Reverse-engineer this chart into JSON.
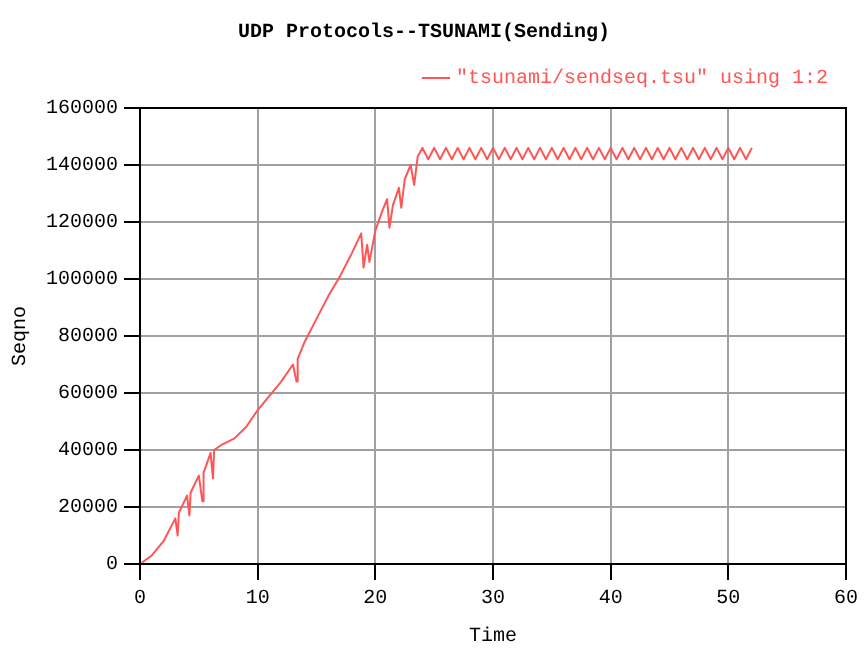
{
  "chart_data": {
    "type": "line",
    "title": "UDP Protocols--TSUNAMI(Sending)",
    "xlabel": "Time",
    "ylabel": "Seqno",
    "xlim": [
      0,
      60
    ],
    "xticks": [
      0,
      10,
      20,
      30,
      40,
      50,
      60
    ],
    "ylim": [
      0,
      160000
    ],
    "yticks": [
      0,
      20000,
      40000,
      60000,
      80000,
      100000,
      120000,
      140000,
      160000
    ],
    "grid": true,
    "legend": "top right",
    "marker": "none",
    "line_style": "solid",
    "series": [
      {
        "name": "\"tsunami/sendseq.tsu\" using 1:2",
        "color": "#ff5555",
        "x": [
          0,
          1,
          2,
          3,
          3.2,
          3.3,
          4,
          4.2,
          4.3,
          5,
          5.3,
          5.4,
          6,
          6.2,
          6.3,
          7,
          8,
          9,
          10,
          11,
          12,
          13,
          13.3,
          13.4,
          14,
          15,
          16,
          17,
          18,
          18.8,
          19,
          19.3,
          19.5,
          20,
          20.6,
          21,
          21.2,
          21.5,
          22,
          22.2,
          22.5,
          23,
          23.3,
          23.6,
          24,
          24.5,
          25,
          25.5,
          26,
          26.5,
          27,
          27.5,
          28,
          28.5,
          29,
          29.5,
          30,
          30.5,
          31,
          31.5,
          32,
          32.5,
          33,
          33.5,
          34,
          34.5,
          35,
          35.5,
          36,
          36.5,
          37,
          37.5,
          38,
          38.5,
          39,
          39.5,
          40,
          40.5,
          41,
          41.5,
          42,
          42.5,
          43,
          43.5,
          44,
          44.5,
          45,
          45.5,
          46,
          46.5,
          47,
          47.5,
          48,
          48.5,
          49,
          49.5,
          50,
          50.5,
          51,
          51.5,
          52
        ],
        "values": [
          0,
          3000,
          8000,
          16000,
          10000,
          18000,
          24000,
          17000,
          25000,
          31000,
          22000,
          32000,
          39000,
          30000,
          40000,
          42000,
          44000,
          48000,
          54000,
          59000,
          64000,
          70000,
          64000,
          72000,
          78000,
          86000,
          94000,
          101000,
          109000,
          116000,
          104000,
          112000,
          106000,
          117000,
          124000,
          128000,
          118000,
          126000,
          132000,
          125000,
          135000,
          140000,
          133000,
          143000,
          146000,
          142000,
          146000,
          142000,
          146000,
          142000,
          146000,
          142000,
          146000,
          142000,
          146000,
          142000,
          146000,
          142000,
          146000,
          142000,
          146000,
          142000,
          146000,
          142000,
          146000,
          142000,
          146000,
          142000,
          146000,
          142000,
          146000,
          142000,
          146000,
          142000,
          146000,
          142000,
          146000,
          142000,
          146000,
          142000,
          146000,
          142000,
          146000,
          142000,
          146000,
          142000,
          146000,
          142000,
          146000,
          142000,
          146000,
          142000,
          146000,
          142000,
          146000,
          142000,
          146000,
          142000,
          146000,
          142000,
          146000
        ]
      }
    ]
  }
}
